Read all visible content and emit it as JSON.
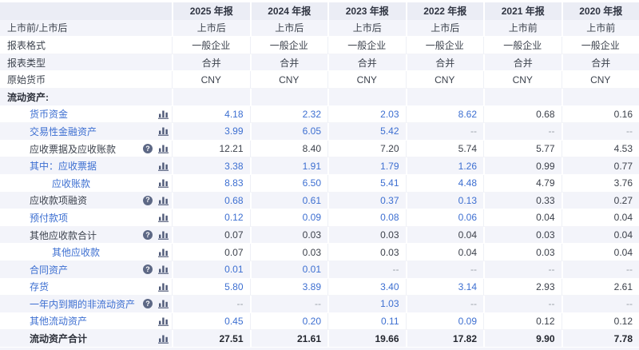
{
  "colors": {
    "link": "#3d6fd1",
    "header_bg": "#ebedf5",
    "stripe_bg": "#f3f4fa",
    "icon": "#4f5a78",
    "help_bg": "#5d6885"
  },
  "header": {
    "corner": "",
    "years": [
      "2025 年报",
      "2024 年报",
      "2023 年报",
      "2022 年报",
      "2021 年报",
      "2020 年报"
    ]
  },
  "icons": {
    "help": "?",
    "chart": "bar-chart"
  },
  "rows": [
    {
      "label": "上市前/上市后",
      "style": "plain",
      "indent": 0,
      "help": false,
      "chart": false,
      "tinted": true,
      "align": "center",
      "cells": [
        [
          "上市后",
          "c"
        ],
        [
          "上市后",
          "c"
        ],
        [
          "上市后",
          "c"
        ],
        [
          "上市后",
          "c"
        ],
        [
          "上市前",
          "c"
        ],
        [
          "上市前",
          "c"
        ]
      ]
    },
    {
      "label": "报表格式",
      "style": "plain",
      "indent": 0,
      "help": false,
      "chart": false,
      "tinted": false,
      "align": "center",
      "cells": [
        [
          "一般企业",
          "c"
        ],
        [
          "一般企业",
          "c"
        ],
        [
          "一般企业",
          "c"
        ],
        [
          "一般企业",
          "c"
        ],
        [
          "一般企业",
          "c"
        ],
        [
          "一般企业",
          "c"
        ]
      ]
    },
    {
      "label": "报表类型",
      "style": "plain",
      "indent": 0,
      "help": false,
      "chart": false,
      "tinted": true,
      "align": "center",
      "cells": [
        [
          "合并",
          "c"
        ],
        [
          "合并",
          "c"
        ],
        [
          "合并",
          "c"
        ],
        [
          "合并",
          "c"
        ],
        [
          "合并",
          "c"
        ],
        [
          "合并",
          "c"
        ]
      ]
    },
    {
      "label": "原始货币",
      "style": "plain",
      "indent": 0,
      "help": false,
      "chart": false,
      "tinted": false,
      "align": "center",
      "cells": [
        [
          "CNY",
          "c"
        ],
        [
          "CNY",
          "c"
        ],
        [
          "CNY",
          "c"
        ],
        [
          "CNY",
          "c"
        ],
        [
          "CNY",
          "c"
        ],
        [
          "CNY",
          "c"
        ]
      ]
    },
    {
      "label": "流动资产:",
      "style": "bold",
      "indent": 0,
      "help": false,
      "chart": false,
      "tinted": true,
      "align": "right",
      "cells": [
        [
          "",
          ""
        ],
        [
          "",
          ""
        ],
        [
          "",
          ""
        ],
        [
          "",
          ""
        ],
        [
          "",
          ""
        ],
        [
          "",
          ""
        ]
      ]
    },
    {
      "label": "货币资金",
      "style": "link",
      "indent": 1,
      "help": false,
      "chart": true,
      "tinted": false,
      "align": "right",
      "cells": [
        [
          "4.18",
          "l"
        ],
        [
          "2.32",
          "l"
        ],
        [
          "2.03",
          "l"
        ],
        [
          "8.62",
          "l"
        ],
        [
          "0.68",
          "p"
        ],
        [
          "0.16",
          "p"
        ]
      ]
    },
    {
      "label": "交易性金融资产",
      "style": "link",
      "indent": 1,
      "help": false,
      "chart": true,
      "tinted": true,
      "align": "right",
      "cells": [
        [
          "3.99",
          "l"
        ],
        [
          "6.05",
          "l"
        ],
        [
          "5.42",
          "l"
        ],
        [
          "--",
          "m"
        ],
        [
          "--",
          "m"
        ],
        [
          "--",
          "m"
        ]
      ]
    },
    {
      "label": "应收票据及应收账款",
      "style": "plain",
      "indent": 1,
      "help": true,
      "chart": true,
      "tinted": false,
      "align": "right",
      "cells": [
        [
          "12.21",
          "p"
        ],
        [
          "8.40",
          "p"
        ],
        [
          "7.20",
          "p"
        ],
        [
          "5.74",
          "p"
        ],
        [
          "5.77",
          "p"
        ],
        [
          "4.53",
          "p"
        ]
      ]
    },
    {
      "label": "其中：应收票据",
      "style": "link",
      "indent": 1,
      "help": false,
      "chart": true,
      "tinted": true,
      "align": "right",
      "cells": [
        [
          "3.38",
          "l"
        ],
        [
          "1.91",
          "l"
        ],
        [
          "1.79",
          "l"
        ],
        [
          "1.26",
          "l"
        ],
        [
          "0.99",
          "p"
        ],
        [
          "0.77",
          "p"
        ]
      ]
    },
    {
      "label": "应收账款",
      "style": "link",
      "indent": 2,
      "help": false,
      "chart": true,
      "tinted": false,
      "align": "right",
      "cells": [
        [
          "8.83",
          "l"
        ],
        [
          "6.50",
          "l"
        ],
        [
          "5.41",
          "l"
        ],
        [
          "4.48",
          "l"
        ],
        [
          "4.79",
          "p"
        ],
        [
          "3.76",
          "p"
        ]
      ]
    },
    {
      "label": "应收款项融资",
      "style": "plain",
      "indent": 1,
      "help": true,
      "chart": true,
      "tinted": true,
      "align": "right",
      "cells": [
        [
          "0.68",
          "l"
        ],
        [
          "0.61",
          "l"
        ],
        [
          "0.37",
          "l"
        ],
        [
          "0.13",
          "l"
        ],
        [
          "0.33",
          "p"
        ],
        [
          "0.27",
          "p"
        ]
      ]
    },
    {
      "label": "预付款项",
      "style": "link",
      "indent": 1,
      "help": false,
      "chart": true,
      "tinted": false,
      "align": "right",
      "cells": [
        [
          "0.12",
          "l"
        ],
        [
          "0.09",
          "l"
        ],
        [
          "0.08",
          "l"
        ],
        [
          "0.06",
          "l"
        ],
        [
          "0.04",
          "p"
        ],
        [
          "0.04",
          "p"
        ]
      ]
    },
    {
      "label": "其他应收款合计",
      "style": "plain",
      "indent": 1,
      "help": true,
      "chart": true,
      "tinted": true,
      "align": "right",
      "cells": [
        [
          "0.07",
          "p"
        ],
        [
          "0.03",
          "p"
        ],
        [
          "0.03",
          "p"
        ],
        [
          "0.04",
          "p"
        ],
        [
          "0.03",
          "p"
        ],
        [
          "0.04",
          "p"
        ]
      ]
    },
    {
      "label": "其他应收款",
      "style": "link",
      "indent": 2,
      "help": false,
      "chart": true,
      "tinted": false,
      "align": "right",
      "cells": [
        [
          "0.07",
          "p"
        ],
        [
          "0.03",
          "p"
        ],
        [
          "0.03",
          "p"
        ],
        [
          "0.04",
          "p"
        ],
        [
          "0.03",
          "p"
        ],
        [
          "0.04",
          "p"
        ]
      ]
    },
    {
      "label": "合同资产",
      "style": "link",
      "indent": 1,
      "help": true,
      "chart": true,
      "tinted": true,
      "align": "right",
      "cells": [
        [
          "0.01",
          "l"
        ],
        [
          "0.01",
          "l"
        ],
        [
          "--",
          "m"
        ],
        [
          "--",
          "m"
        ],
        [
          "--",
          "m"
        ],
        [
          "--",
          "m"
        ]
      ]
    },
    {
      "label": "存货",
      "style": "link",
      "indent": 1,
      "help": false,
      "chart": true,
      "tinted": false,
      "align": "right",
      "cells": [
        [
          "5.80",
          "l"
        ],
        [
          "3.89",
          "l"
        ],
        [
          "3.40",
          "l"
        ],
        [
          "3.14",
          "l"
        ],
        [
          "2.93",
          "p"
        ],
        [
          "2.61",
          "p"
        ]
      ]
    },
    {
      "label": "一年内到期的非流动资产",
      "style": "link",
      "indent": 1,
      "help": true,
      "chart": true,
      "tinted": true,
      "align": "right",
      "cells": [
        [
          "--",
          "m"
        ],
        [
          "--",
          "m"
        ],
        [
          "1.03",
          "l"
        ],
        [
          "--",
          "m"
        ],
        [
          "--",
          "m"
        ],
        [
          "--",
          "m"
        ]
      ]
    },
    {
      "label": "其他流动资产",
      "style": "link",
      "indent": 1,
      "help": false,
      "chart": true,
      "tinted": false,
      "align": "right",
      "cells": [
        [
          "0.45",
          "l"
        ],
        [
          "0.20",
          "l"
        ],
        [
          "0.11",
          "l"
        ],
        [
          "0.09",
          "l"
        ],
        [
          "0.12",
          "p"
        ],
        [
          "0.12",
          "p"
        ]
      ]
    },
    {
      "label": "流动资产合计",
      "style": "bold",
      "indent": 1,
      "help": false,
      "chart": true,
      "tinted": true,
      "align": "right",
      "cells": [
        [
          "27.51",
          "b"
        ],
        [
          "21.61",
          "b"
        ],
        [
          "19.66",
          "b"
        ],
        [
          "17.82",
          "b"
        ],
        [
          "9.90",
          "b"
        ],
        [
          "7.78",
          "b"
        ]
      ]
    }
  ]
}
